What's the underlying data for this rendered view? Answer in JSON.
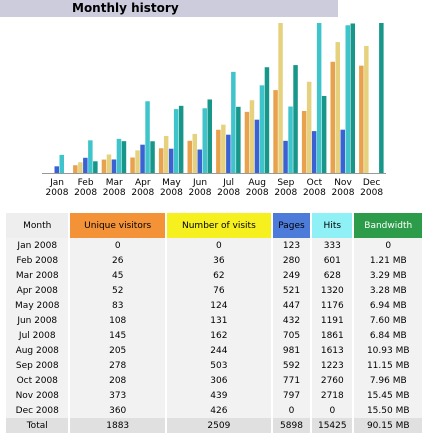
{
  "title": "Monthly history",
  "chart_data": {
    "type": "bar",
    "categories": [
      "Jan 2008",
      "Feb 2008",
      "Mar 2008",
      "Apr 2008",
      "May 2008",
      "Jun 2008",
      "Jul 2008",
      "Aug 2008",
      "Sep 2008",
      "Oct 2008",
      "Nov 2008",
      "Dec 2008"
    ],
    "series": [
      {
        "name": "Unique visitors",
        "color": "#e8a24e",
        "header_color": "#f39237",
        "values": [
          0,
          26,
          45,
          52,
          83,
          108,
          145,
          205,
          278,
          208,
          373,
          360
        ]
      },
      {
        "name": "Number of visits",
        "color": "#e6d27e",
        "header_color": "#f5f01e",
        "values": [
          0,
          36,
          62,
          76,
          124,
          131,
          162,
          244,
          503,
          306,
          439,
          426
        ]
      },
      {
        "name": "Pages",
        "color": "#3b62d2",
        "header_color": "#4d7bd9",
        "values": [
          123,
          280,
          249,
          521,
          447,
          432,
          705,
          981,
          592,
          771,
          797,
          0
        ]
      },
      {
        "name": "Hits",
        "color": "#3fc4cc",
        "header_color": "#8ff0f5",
        "values": [
          333,
          601,
          628,
          1320,
          1176,
          1191,
          1861,
          1613,
          1223,
          2760,
          2718,
          0
        ]
      },
      {
        "name": "Bandwidth",
        "color": "#17978a",
        "header_color": "#2c9c4a",
        "values": [
          0,
          1.21,
          3.29,
          3.28,
          6.94,
          7.6,
          6.84,
          10.93,
          11.15,
          7.96,
          15.45,
          15.5
        ],
        "value_labels": [
          "0",
          "1.21 MB",
          "3.29 MB",
          "3.28 MB",
          "6.94 MB",
          "7.60 MB",
          "6.84 MB",
          "10.93 MB",
          "11.15 MB",
          "7.96 MB",
          "15.45 MB",
          "15.50 MB"
        ]
      }
    ]
  },
  "table": {
    "month_header": "Month",
    "total_label": "Total",
    "totals": [
      1883,
      2509,
      5898,
      15425,
      {
        "value": 90.15,
        "label": "90.15 MB"
      }
    ]
  }
}
